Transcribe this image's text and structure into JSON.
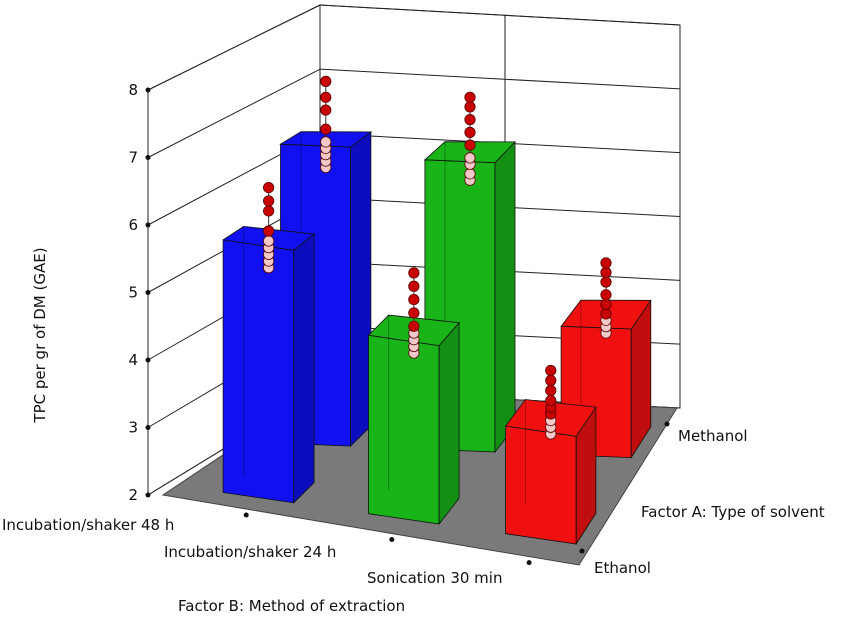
{
  "chart_data": {
    "type": "bar",
    "title": "",
    "ylabel": "TPC per gr of DM (GAE)",
    "xlabel": "Factor B: Method of extraction",
    "zlabel": "Factor A: Type of solvent",
    "ylim": [
      2,
      8
    ],
    "yticks": [
      2,
      3,
      4,
      5,
      6,
      7,
      8
    ],
    "categories_b": [
      "Incubation/shaker 48 h",
      "Incubation/shaker 24 h",
      "Sonication 30 min"
    ],
    "categories_a": [
      "Ethanol",
      "Methanol"
    ],
    "bar_colors": [
      "#1010f0",
      "#18b418",
      "#f01010"
    ],
    "floor_color": "#7a7a7a",
    "point_color_high": "#c80000",
    "point_color_low": "#f2c8c8",
    "bars": [
      {
        "method": "Incubation/shaker 48 h",
        "solvent": "Ethanol",
        "value": 5.75,
        "points": [
          5.3,
          5.4,
          5.5,
          5.6,
          5.7,
          5.85,
          6.15,
          6.3,
          6.5
        ]
      },
      {
        "method": "Incubation/shaker 48 h",
        "solvent": "Methanol",
        "value": 6.65,
        "points": [
          6.2,
          6.3,
          6.4,
          6.5,
          6.6,
          6.8,
          7.1,
          7.3,
          7.55
        ]
      },
      {
        "method": "Incubation/shaker 24 h",
        "solvent": "Ethanol",
        "value": 4.65,
        "points": [
          4.3,
          4.4,
          4.5,
          4.6,
          4.7,
          4.9,
          5.1,
          5.3,
          5.5
        ]
      },
      {
        "method": "Incubation/shaker 24 h",
        "solvent": "Methanol",
        "value": 6.5,
        "points": [
          6.05,
          6.15,
          6.3,
          6.4,
          6.6,
          6.8,
          7.0,
          7.2,
          7.35
        ]
      },
      {
        "method": "Sonication 30 min",
        "solvent": "Ethanol",
        "value": 3.6,
        "points": [
          3.35,
          3.45,
          3.55,
          3.65,
          3.75,
          3.85,
          4.0,
          4.15,
          4.3
        ]
      },
      {
        "method": "Sonication 30 min",
        "solvent": "Methanol",
        "value": 4.0,
        "points": [
          3.7,
          3.8,
          3.9,
          4.0,
          4.15,
          4.3,
          4.5,
          4.65,
          4.8
        ]
      }
    ]
  }
}
